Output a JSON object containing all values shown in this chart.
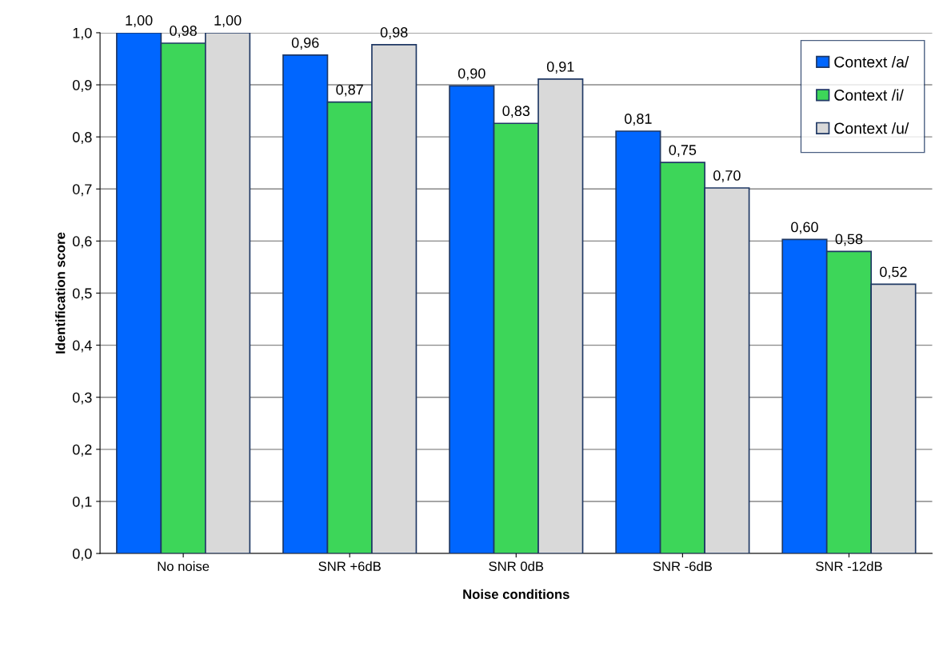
{
  "chart_data": {
    "type": "bar",
    "xlabel": "Noise conditions",
    "ylabel": "Identification score",
    "categories": [
      "No noise",
      "SNR +6dB",
      "SNR 0dB",
      "SNR -6dB",
      "SNR -12dB"
    ],
    "series": [
      {
        "name": "Context /a/",
        "color": "#0066ff",
        "values": [
          1.0,
          0.957,
          0.898,
          0.811,
          0.603
        ],
        "value_labels": [
          "1,00",
          "0,96",
          "0,90",
          "0,81",
          "0,60"
        ]
      },
      {
        "name": "Context /i/",
        "color": "#3dd659",
        "values": [
          0.98,
          0.867,
          0.826,
          0.751,
          0.58
        ],
        "value_labels": [
          "0,98",
          "0,87",
          "0,83",
          "0,75",
          "0,58"
        ]
      },
      {
        "name": "Context /u/",
        "color": "#d9d9d9",
        "values": [
          1.0,
          0.977,
          0.911,
          0.702,
          0.517
        ],
        "value_labels": [
          "1,00",
          "0,98",
          "0,91",
          "0,70",
          "0,52"
        ]
      }
    ],
    "ylim": [
      0,
      1.0
    ],
    "yticks": [
      {
        "value": 0,
        "label": "0,0"
      },
      {
        "value": 0.1,
        "label": "0,1"
      },
      {
        "value": 0.2,
        "label": "0,2"
      },
      {
        "value": 0.3,
        "label": "0,3"
      },
      {
        "value": 0.4,
        "label": "0,4"
      },
      {
        "value": 0.5,
        "label": "0,5"
      },
      {
        "value": 0.6,
        "label": "0,6"
      },
      {
        "value": 0.7,
        "label": "0,7"
      },
      {
        "value": 0.8,
        "label": "0,8"
      },
      {
        "value": 0.9,
        "label": "0,9"
      },
      {
        "value": 1.0,
        "label": "1,0"
      }
    ],
    "grid": "y",
    "legend": "top right"
  }
}
